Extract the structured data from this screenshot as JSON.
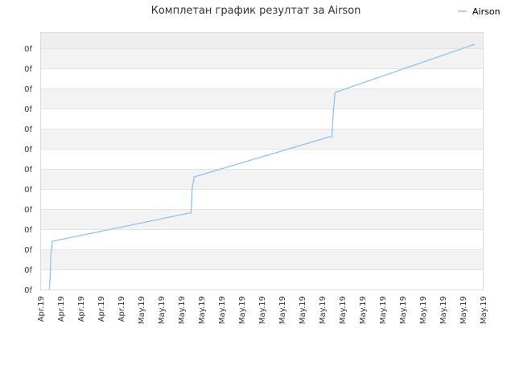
{
  "chart_data": {
    "type": "line",
    "title": "Комплетан график резултат за Airson",
    "xlabel": "",
    "ylabel": "",
    "legend": {
      "placement": "top-right",
      "entries": [
        "Airson"
      ]
    },
    "grid": true,
    "x_tick_labels": [
      "Apr.19",
      "Apr.19",
      "Apr.19",
      "Apr.19",
      "Apr.19",
      "May.19",
      "May.19",
      "May.19",
      "May.19",
      "May.19",
      "May.19",
      "May.19",
      "May.19",
      "May.19",
      "May.19",
      "May.19",
      "May.19",
      "May.19",
      "May.19",
      "May.19",
      "May.19",
      "May.19",
      "May.19"
    ],
    "y_tick_labels": [
      "0f",
      "0f",
      "0f",
      "0f",
      "0f",
      "0f",
      "0f",
      "0f",
      "0f",
      "0f",
      "0f",
      "0f",
      "0f"
    ],
    "x_range": [
      0,
      22
    ],
    "y_range": [
      0,
      12.8
    ],
    "series": [
      {
        "name": "Airson",
        "color": "#90c3f0",
        "points": [
          [
            0.45,
            0.0
          ],
          [
            0.5,
            0.8
          ],
          [
            0.52,
            1.6
          ],
          [
            0.6,
            2.4
          ],
          [
            7.4,
            3.8
          ],
          [
            7.5,
            3.8
          ],
          [
            7.55,
            5.0
          ],
          [
            7.65,
            5.6
          ],
          [
            14.4,
            7.6
          ],
          [
            14.5,
            7.6
          ],
          [
            14.55,
            8.6
          ],
          [
            14.65,
            9.8
          ],
          [
            21.6,
            12.2
          ]
        ]
      }
    ]
  }
}
